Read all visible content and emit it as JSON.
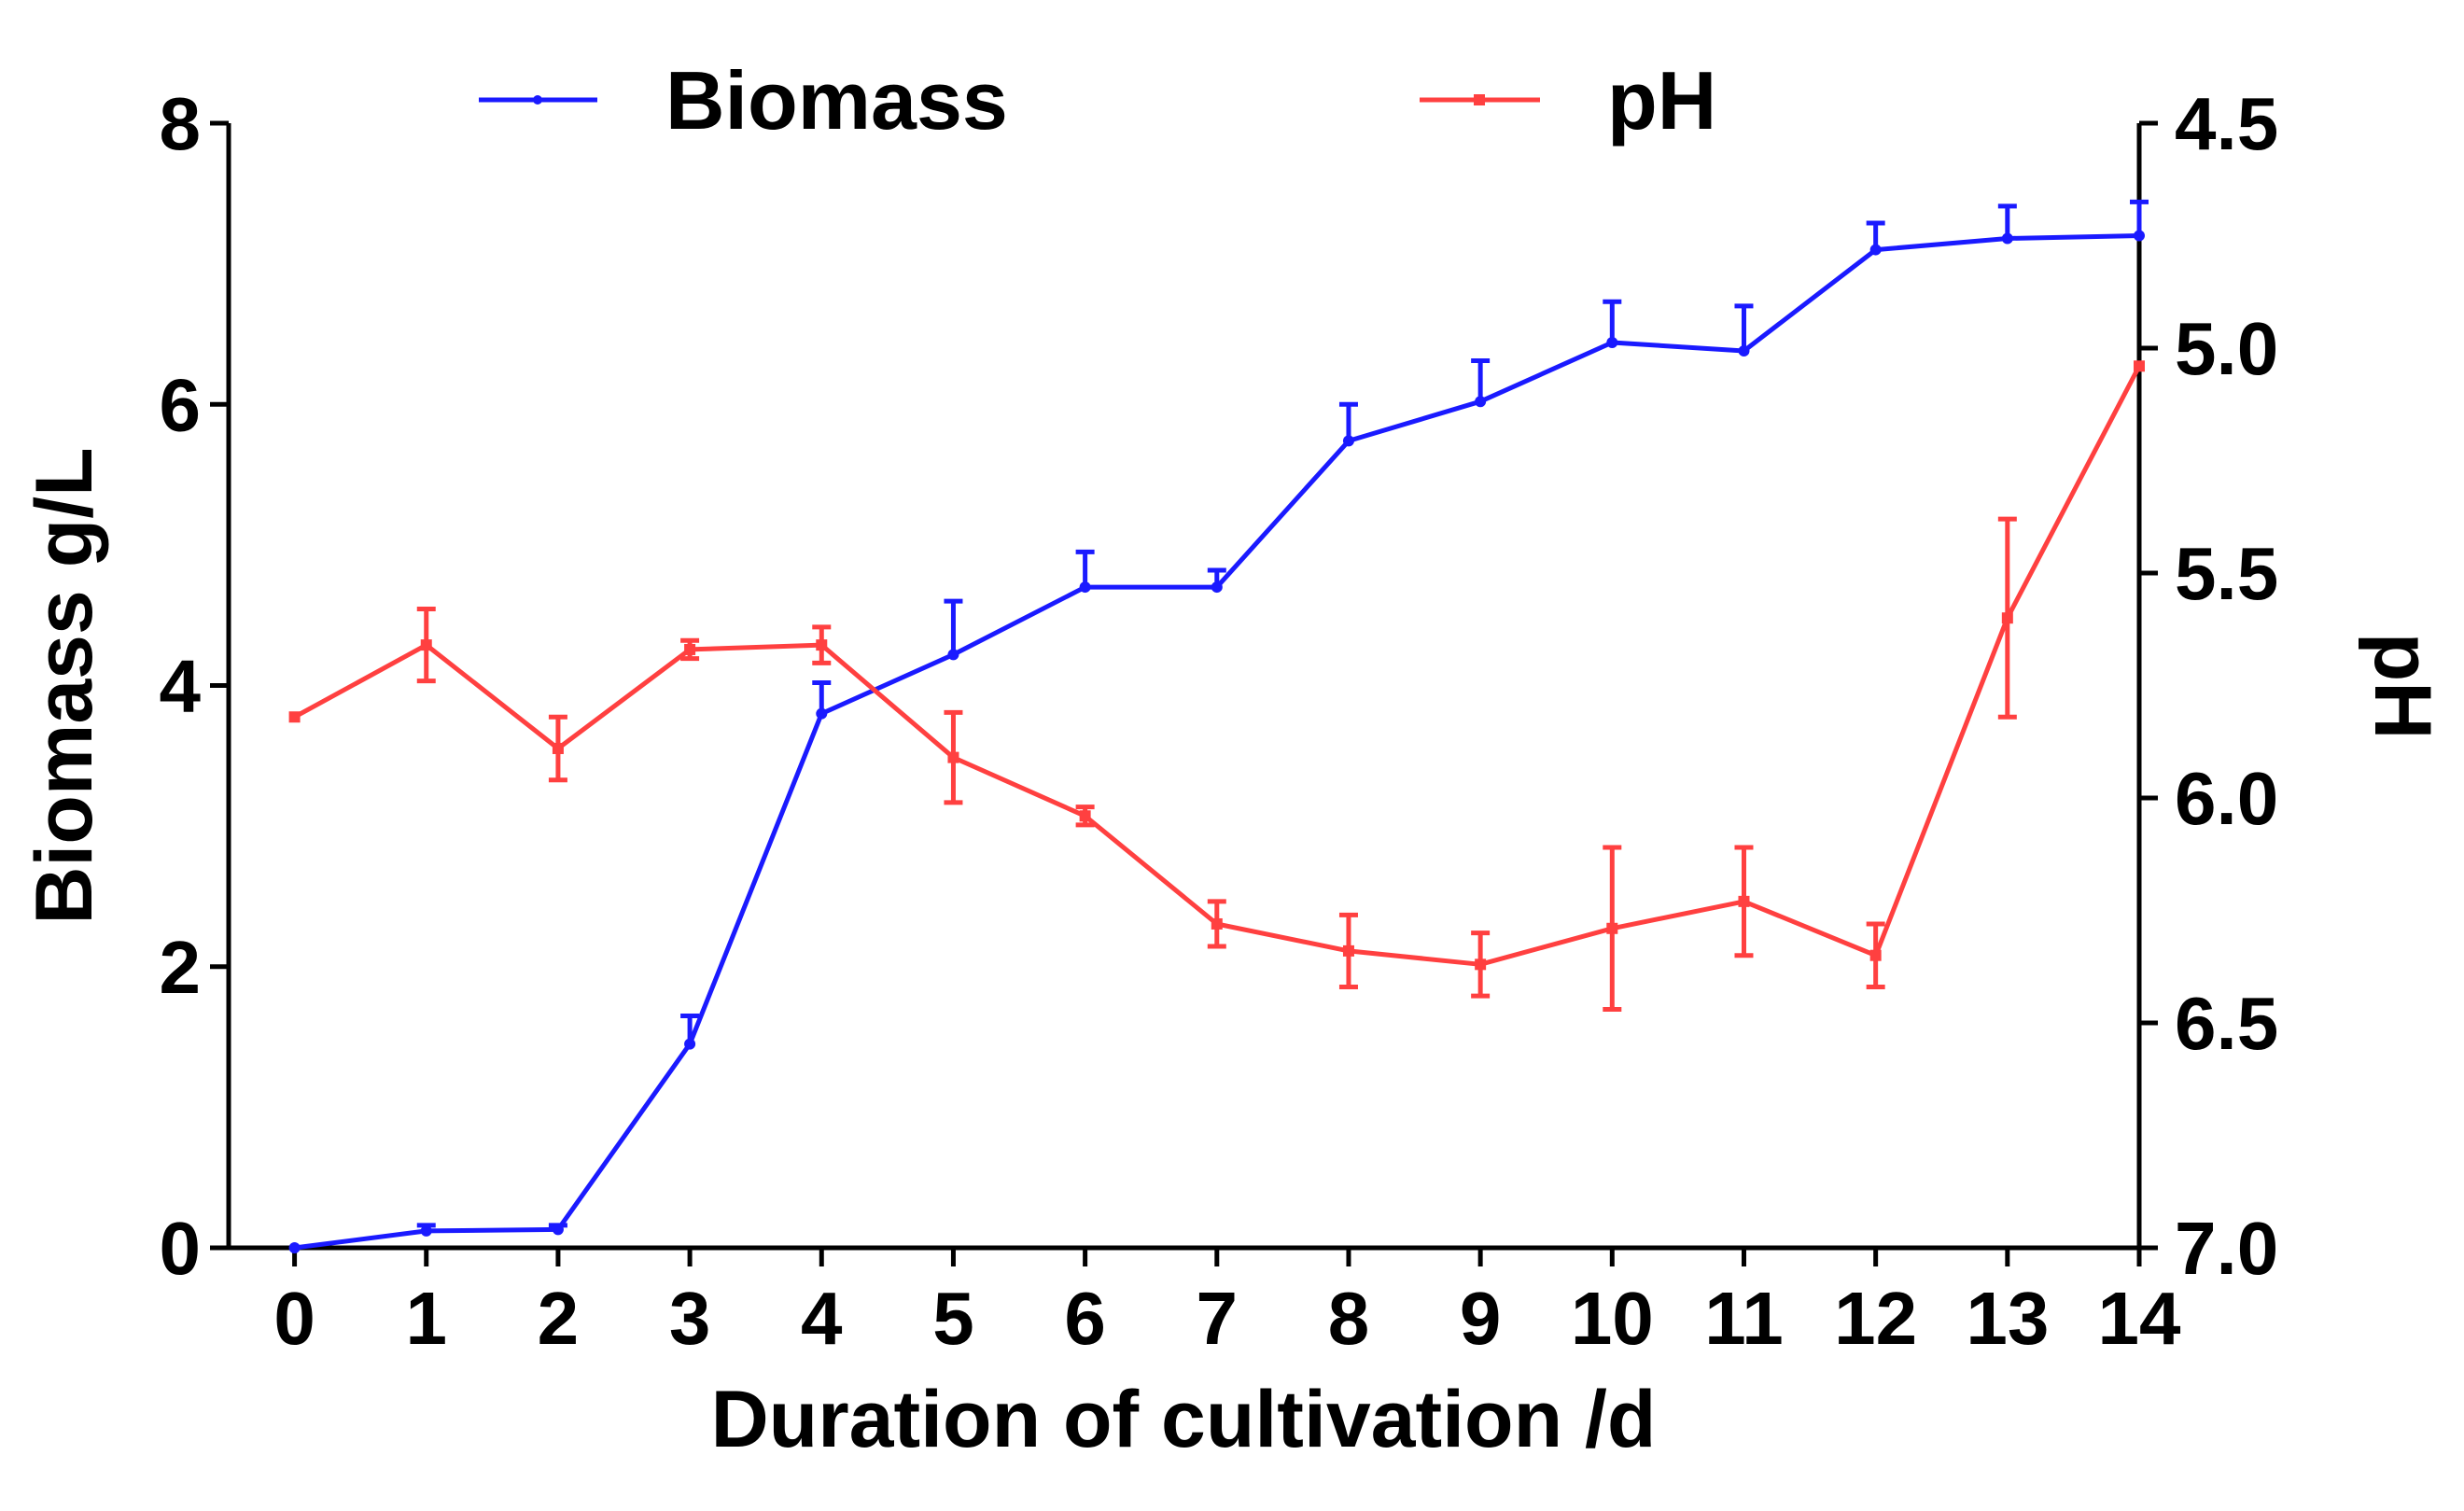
{
  "chart_data": {
    "type": "line",
    "title": "",
    "xlabel": "Duration of cultivation /d",
    "ylabel_left": "Biomass g/L",
    "ylabel_right": "pH",
    "x": [
      0,
      1,
      2,
      3,
      4,
      5,
      6,
      7,
      8,
      9,
      10,
      11,
      12,
      13,
      14
    ],
    "xlim": [
      -0.5,
      14
    ],
    "ylim_left": [
      0,
      8
    ],
    "ylim_right": [
      4.5,
      7.0
    ],
    "right_axis_inverted": true,
    "x_ticks": [
      "0",
      "1",
      "2",
      "3",
      "4",
      "5",
      "6",
      "7",
      "8",
      "9",
      "10",
      "11",
      "12",
      "13",
      "14"
    ],
    "y_ticks_left": [
      "0",
      "2",
      "4",
      "6",
      "8"
    ],
    "y_ticks_right": [
      "4.5",
      "5.0",
      "5.5",
      "6.0",
      "6.5",
      "7.0"
    ],
    "legend_position": "top",
    "series": [
      {
        "name": "Biomass",
        "axis": "left",
        "color": "#1a1aff",
        "marker": "circle",
        "values": [
          0.0,
          0.12,
          0.13,
          1.45,
          3.8,
          4.22,
          4.7,
          4.7,
          5.74,
          6.02,
          6.44,
          6.38,
          7.1,
          7.18,
          7.2
        ],
        "errors": [
          0.0,
          0.04,
          0.03,
          0.2,
          0.22,
          0.38,
          0.25,
          0.12,
          0.26,
          0.29,
          0.29,
          0.32,
          0.19,
          0.23,
          0.24
        ],
        "error_style": "upper"
      },
      {
        "name": "pH",
        "axis": "right",
        "color": "#ff4040",
        "marker": "square",
        "values": [
          5.82,
          5.66,
          5.89,
          5.67,
          5.66,
          5.91,
          6.04,
          6.28,
          6.34,
          6.37,
          6.29,
          6.23,
          6.35,
          5.6,
          5.04
        ],
        "errors": [
          0.0,
          0.08,
          0.07,
          0.02,
          0.04,
          0.1,
          0.02,
          0.05,
          0.08,
          0.07,
          0.18,
          0.12,
          0.07,
          0.22,
          0.0
        ],
        "error_style": "both"
      }
    ]
  }
}
